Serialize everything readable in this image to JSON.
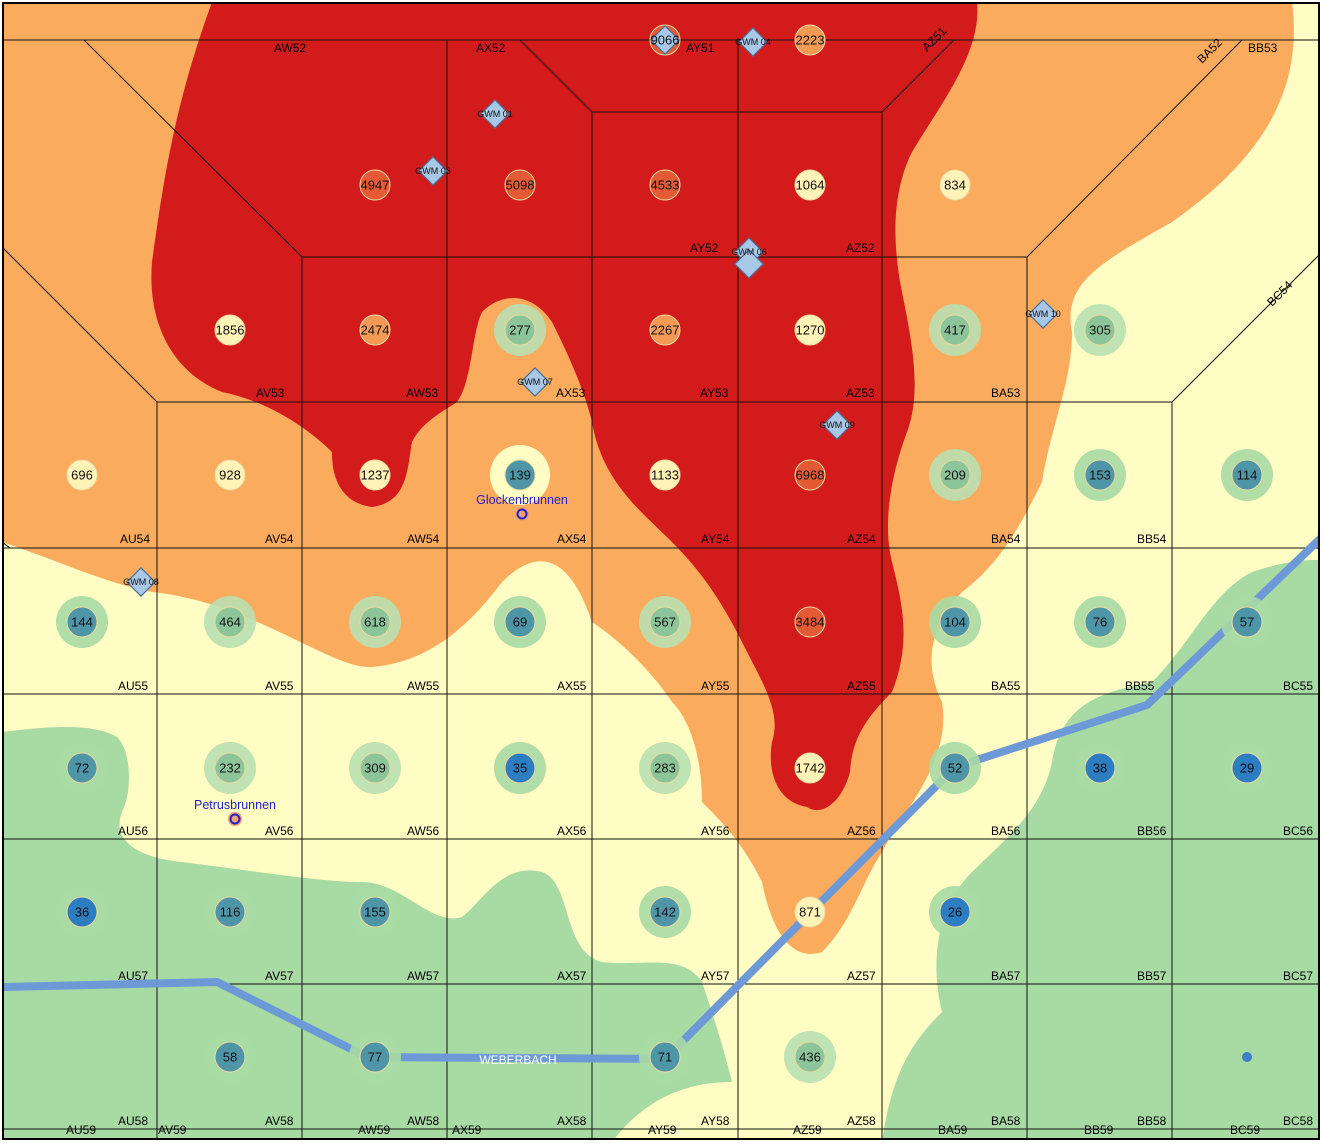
{
  "colors": {
    "class_red": "#d41b1b",
    "class_orange": "#fbab5e",
    "class_yellow": "#fffdc4",
    "class_green": "#a8daa4",
    "stream": "#6d9ad6",
    "spring_marker": "#2222cc"
  },
  "cells": [
    {
      "label": "AW52"
    },
    {
      "label": "AX52"
    },
    {
      "label": "AY51"
    },
    {
      "label": "AZ51"
    },
    {
      "label": "BA52"
    },
    {
      "label": "BB53"
    },
    {
      "label": "AY52"
    },
    {
      "label": "AZ52"
    },
    {
      "label": "BC54"
    },
    {
      "label": "AV53"
    },
    {
      "label": "AW53"
    },
    {
      "label": "AX53"
    },
    {
      "label": "AY53"
    },
    {
      "label": "AZ53"
    },
    {
      "label": "BA53"
    },
    {
      "label": "AU54"
    },
    {
      "label": "AV54"
    },
    {
      "label": "AW54"
    },
    {
      "label": "AX54"
    },
    {
      "label": "AY54"
    },
    {
      "label": "AZ54"
    },
    {
      "label": "BA54"
    },
    {
      "label": "BB54"
    },
    {
      "label": "AU55"
    },
    {
      "label": "AV55"
    },
    {
      "label": "AW55"
    },
    {
      "label": "AX55"
    },
    {
      "label": "AY55"
    },
    {
      "label": "AZ55"
    },
    {
      "label": "BA55"
    },
    {
      "label": "BB55"
    },
    {
      "label": "BC55"
    },
    {
      "label": "AU56"
    },
    {
      "label": "AV56"
    },
    {
      "label": "AW56"
    },
    {
      "label": "AX56"
    },
    {
      "label": "AY56"
    },
    {
      "label": "AZ56"
    },
    {
      "label": "BA56"
    },
    {
      "label": "BB56"
    },
    {
      "label": "BC56"
    },
    {
      "label": "AU57"
    },
    {
      "label": "AV57"
    },
    {
      "label": "AW57"
    },
    {
      "label": "AX57"
    },
    {
      "label": "AY57"
    },
    {
      "label": "AZ57"
    },
    {
      "label": "BA57"
    },
    {
      "label": "BB57"
    },
    {
      "label": "BC57"
    },
    {
      "label": "AU58"
    },
    {
      "label": "AV58"
    },
    {
      "label": "AW58"
    },
    {
      "label": "AX58"
    },
    {
      "label": "AY58"
    },
    {
      "label": "AZ58"
    },
    {
      "label": "BA58"
    },
    {
      "label": "BB58"
    },
    {
      "label": "BC58"
    },
    {
      "label": "AU59"
    },
    {
      "label": "AV59"
    },
    {
      "label": "AW59"
    },
    {
      "label": "AX59"
    },
    {
      "label": "AY59"
    },
    {
      "label": "AZ59"
    },
    {
      "label": "BA59"
    },
    {
      "label": "BB59"
    },
    {
      "label": "BC59"
    }
  ],
  "samples": [
    {
      "value": "9066",
      "class": "red"
    },
    {
      "value": "2223",
      "class": "orange"
    },
    {
      "value": "4947",
      "class": "red"
    },
    {
      "value": "5098",
      "class": "red"
    },
    {
      "value": "4533",
      "class": "red"
    },
    {
      "value": "1064",
      "class": "yellow"
    },
    {
      "value": "834",
      "class": "yellow"
    },
    {
      "value": "1856",
      "class": "yellow"
    },
    {
      "value": "2474",
      "class": "orange"
    },
    {
      "value": "277",
      "class": "green"
    },
    {
      "value": "2267",
      "class": "orange"
    },
    {
      "value": "1270",
      "class": "yellow"
    },
    {
      "value": "417",
      "class": "green"
    },
    {
      "value": "305",
      "class": "green"
    },
    {
      "value": "696",
      "class": "yellow"
    },
    {
      "value": "928",
      "class": "yellow"
    },
    {
      "value": "1237",
      "class": "yellow"
    },
    {
      "value": "139",
      "class": "teal"
    },
    {
      "value": "1133",
      "class": "yellow"
    },
    {
      "value": "6968",
      "class": "red"
    },
    {
      "value": "209",
      "class": "green"
    },
    {
      "value": "153",
      "class": "teal"
    },
    {
      "value": "114",
      "class": "teal"
    },
    {
      "value": "144",
      "class": "teal"
    },
    {
      "value": "464",
      "class": "green"
    },
    {
      "value": "618",
      "class": "green"
    },
    {
      "value": "69",
      "class": "teal"
    },
    {
      "value": "567",
      "class": "green"
    },
    {
      "value": "3484",
      "class": "red"
    },
    {
      "value": "104",
      "class": "teal"
    },
    {
      "value": "76",
      "class": "teal"
    },
    {
      "value": "57",
      "class": "teal"
    },
    {
      "value": "72",
      "class": "teal"
    },
    {
      "value": "232",
      "class": "green"
    },
    {
      "value": "309",
      "class": "green"
    },
    {
      "value": "35",
      "class": "blue"
    },
    {
      "value": "283",
      "class": "green"
    },
    {
      "value": "1742",
      "class": "yellow"
    },
    {
      "value": "52",
      "class": "teal"
    },
    {
      "value": "38",
      "class": "blue"
    },
    {
      "value": "29",
      "class": "blue"
    },
    {
      "value": "36",
      "class": "blue"
    },
    {
      "value": "116",
      "class": "teal"
    },
    {
      "value": "155",
      "class": "teal"
    },
    {
      "value": "142",
      "class": "teal"
    },
    {
      "value": "871",
      "class": "yellow"
    },
    {
      "value": "26",
      "class": "blue"
    },
    {
      "value": "58",
      "class": "teal"
    },
    {
      "value": "77",
      "class": "teal"
    },
    {
      "value": "71",
      "class": "teal"
    },
    {
      "value": "436",
      "class": "green"
    },
    {
      "value": "",
      "class": "blue-dot"
    }
  ],
  "wells": [
    {
      "label": "GWM 01"
    },
    {
      "label": "GWM 03"
    },
    {
      "label": "GWM 04"
    },
    {
      "label": "GWM 06"
    },
    {
      "label": "GWM 07"
    },
    {
      "label": "GWM 08"
    },
    {
      "label": "GWM 09"
    },
    {
      "label": "GWM 10"
    }
  ],
  "springs": [
    {
      "label": "Glockenbrunnen"
    },
    {
      "label": "Petrusbrunnen"
    }
  ],
  "stream": {
    "label": "WEBERBACH"
  }
}
